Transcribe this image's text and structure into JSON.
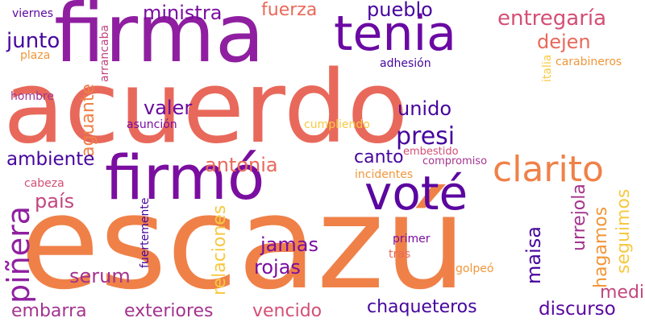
{
  "words": [
    {
      "text": "acuerdo",
      "color": "#e8695b"
    },
    {
      "text": "escazú",
      "color": "#ef8148"
    },
    {
      "text": "firma",
      "color": "#8f1fa0"
    },
    {
      "text": "firmó",
      "color": "#7a0ea0"
    },
    {
      "text": "tenia",
      "color": "#6a0aa3"
    },
    {
      "text": "voté",
      "color": "#5b06a0"
    },
    {
      "text": "clarito",
      "color": "#ef8148"
    },
    {
      "text": "entregaría",
      "color": "#d44f75"
    },
    {
      "text": "piñera",
      "color": "#8f1fa0"
    },
    {
      "text": "ministra",
      "color": "#7a0ea0"
    },
    {
      "text": "fuerza",
      "color": "#e8695b"
    },
    {
      "text": "pueblo",
      "color": "#46069d"
    },
    {
      "text": "dejen",
      "color": "#e8695b"
    },
    {
      "text": "junto",
      "color": "#46069d"
    },
    {
      "text": "aguante",
      "color": "#ef8148"
    },
    {
      "text": "valer",
      "color": "#6a0aa3"
    },
    {
      "text": "unido",
      "color": "#46069d"
    },
    {
      "text": "presi",
      "color": "#46069d"
    },
    {
      "text": "canto",
      "color": "#46069d"
    },
    {
      "text": "ambiente",
      "color": "#46069d"
    },
    {
      "text": "antonia",
      "color": "#e8695b"
    },
    {
      "text": "país",
      "color": "#c2467f"
    },
    {
      "text": "relaciones",
      "color": "#f7c941"
    },
    {
      "text": "jamas",
      "color": "#7a0ea0"
    },
    {
      "text": "rojas",
      "color": "#7a0ea0"
    },
    {
      "text": "serum",
      "color": "#a3348e"
    },
    {
      "text": "maisa",
      "color": "#46069d"
    },
    {
      "text": "urrejola",
      "color": "#a3348e"
    },
    {
      "text": "hagamos",
      "color": "#f0973a"
    },
    {
      "text": "seguimos",
      "color": "#f7c941"
    },
    {
      "text": "medio",
      "color": "#c2467f"
    },
    {
      "text": "embarra",
      "color": "#a3348e"
    },
    {
      "text": "exteriores",
      "color": "#a3348e"
    },
    {
      "text": "vencido",
      "color": "#d44f75"
    },
    {
      "text": "chaqueteros",
      "color": "#46069d"
    },
    {
      "text": "discurso",
      "color": "#5b06a0"
    },
    {
      "text": "viernes",
      "color": "#5b06a0"
    },
    {
      "text": "arrancaba",
      "color": "#c2467f"
    },
    {
      "text": "plaza",
      "color": "#f0973a"
    },
    {
      "text": "hombre",
      "color": "#a3348e"
    },
    {
      "text": "adhesión",
      "color": "#46069d"
    },
    {
      "text": "italia",
      "color": "#f7c941"
    },
    {
      "text": "carabineros",
      "color": "#f0973a"
    },
    {
      "text": "asunción",
      "color": "#7a0ea0"
    },
    {
      "text": "cumpliendo",
      "color": "#f7c941"
    },
    {
      "text": "embestido",
      "color": "#d44f75"
    },
    {
      "text": "compromiso",
      "color": "#a3348e"
    },
    {
      "text": "incidentes",
      "color": "#f0973a"
    },
    {
      "text": "cabeza",
      "color": "#d44f75"
    },
    {
      "text": "fuertemente",
      "color": "#46069d"
    },
    {
      "text": "primer",
      "color": "#7a0ea0"
    },
    {
      "text": "tras",
      "color": "#e8695b"
    },
    {
      "text": "golpeó",
      "color": "#f0973a"
    }
  ]
}
